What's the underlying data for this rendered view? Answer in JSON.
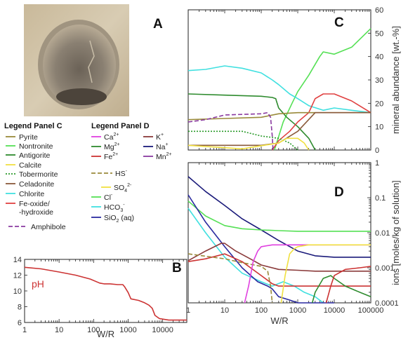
{
  "panels": {
    "A": {
      "letter": "A"
    },
    "B": {
      "letter": "B"
    },
    "C": {
      "letter": "C"
    },
    "D": {
      "letter": "D"
    }
  },
  "legend_c": {
    "title": "Legend Panel C",
    "items": [
      {
        "label": "Pyrite",
        "color": "#9a8a3a",
        "dash": "solid"
      },
      {
        "label": "Nontronite",
        "color": "#55e055",
        "dash": "solid"
      },
      {
        "label": "Antigorite",
        "color": "#2e8b2e",
        "dash": "solid"
      },
      {
        "label": "Calcite",
        "color": "#f0e040",
        "dash": "solid"
      },
      {
        "label": "Tobermorite",
        "color": "#2a9a2a",
        "dash": "dotted"
      },
      {
        "label": "Celadonite",
        "color": "#8a5a3a",
        "dash": "solid"
      },
      {
        "label": "Chlorite",
        "color": "#40e0e0",
        "dash": "solid"
      },
      {
        "label": "Fe-oxide/",
        "label2": "-hydroxide",
        "color": "#e04040",
        "dash": "solid"
      },
      {
        "label": "Amphibole",
        "color": "#8a3aa0",
        "dash": "dashed"
      }
    ]
  },
  "legend_d": {
    "title": "Legend Panel D",
    "col1": [
      {
        "base": "Ca",
        "sup": "2+",
        "sub": "",
        "color": "#e040e0",
        "dash": "solid"
      },
      {
        "base": "Mg",
        "sup": "2+",
        "sub": "",
        "color": "#2e8b2e",
        "dash": "solid"
      },
      {
        "base": "Fe",
        "sup": "2+",
        "sub": "",
        "color": "#cc3333",
        "dash": "solid"
      },
      {
        "base": "HS",
        "sup": "-",
        "sub": "",
        "color": "#9a8a3a",
        "dash": "dashed"
      },
      {
        "base": "SO",
        "sup": "2-",
        "sub": "4",
        "color": "#f0e040",
        "dash": "solid"
      },
      {
        "base": "Cl",
        "sup": "-",
        "sub": "",
        "color": "#55e055",
        "dash": "solid"
      },
      {
        "base": "HCO",
        "sup": "-",
        "sub": "3",
        "color": "#40e0e0",
        "dash": "solid"
      },
      {
        "base": "SiO",
        "sup": "",
        "sub": "2",
        "suffix": "(aq)",
        "color": "#2a2aa0",
        "dash": "solid"
      }
    ],
    "col2": [
      {
        "base": "K",
        "sup": "+",
        "sub": "",
        "color": "#8a3a3a",
        "dash": "solid"
      },
      {
        "base": "Na",
        "sup": "+",
        "sub": "",
        "color": "#1a1a7a",
        "dash": "solid"
      },
      {
        "base": "Mn",
        "sup": "2+",
        "sub": "",
        "color": "#8a3aa0",
        "dash": "solid"
      }
    ]
  },
  "chart_data": [
    {
      "panel": "B",
      "type": "line",
      "xscale": "log",
      "xlim": [
        1,
        50000
      ],
      "ylim": [
        6,
        14
      ],
      "yticks": [
        6,
        8,
        10,
        12,
        14
      ],
      "xticks": [
        1,
        10,
        100,
        1000,
        10000
      ],
      "xtick_labels": [
        "1",
        "10",
        "100",
        "1000",
        "10000"
      ],
      "xlabel": "W/R",
      "ylabel": "",
      "annotation": "pH",
      "series": [
        {
          "color": "#cc3333",
          "x": [
            1,
            3,
            10,
            30,
            80,
            150,
            200,
            300,
            500,
            700,
            800,
            1000,
            1200,
            2000,
            3000,
            4000,
            5000,
            6000,
            8000,
            15000,
            50000
          ],
          "y": [
            13.0,
            12.8,
            12.4,
            12.0,
            11.5,
            11.0,
            10.9,
            10.9,
            10.8,
            10.8,
            10.5,
            9.8,
            9.0,
            8.8,
            8.5,
            8.2,
            7.8,
            6.9,
            6.5,
            6.3,
            6.3
          ]
        }
      ]
    },
    {
      "panel": "C",
      "type": "line",
      "xscale": "log",
      "xlim": [
        1,
        100000
      ],
      "ylim": [
        0,
        60
      ],
      "yticks": [
        0,
        10,
        20,
        30,
        40,
        50,
        60
      ],
      "xticks": [
        1,
        10,
        100,
        1000,
        10000,
        100000
      ],
      "ylabel": "mineral abundance [wt.-%]",
      "series": [
        {
          "name": "Nontronite",
          "color": "#55e055",
          "dash": "solid",
          "x": [
            230,
            400,
            700,
            1000,
            2000,
            4000,
            5000,
            10000,
            30000,
            100000
          ],
          "y": [
            0,
            12,
            20,
            25,
            32,
            40,
            42,
            41,
            44,
            52
          ]
        },
        {
          "name": "Chlorite",
          "color": "#40e0e0",
          "dash": "solid",
          "x": [
            1,
            3,
            10,
            30,
            100,
            200,
            300,
            600,
            1000,
            2000,
            5000,
            10000,
            30000,
            100000
          ],
          "y": [
            34,
            34.5,
            36,
            35,
            33,
            30,
            28,
            24,
            22,
            19,
            17,
            18,
            17,
            16
          ]
        },
        {
          "name": "Antigorite",
          "color": "#2e8b2e",
          "dash": "solid",
          "x": [
            1,
            10,
            100,
            200,
            250,
            260,
            300,
            500,
            1000,
            2000,
            3000
          ],
          "y": [
            24,
            23.5,
            23,
            22.5,
            22,
            21,
            18,
            14,
            10,
            5,
            0
          ]
        },
        {
          "name": "Fe-oxide/-hydroxide",
          "color": "#e04040",
          "dash": "solid",
          "x": [
            200,
            300,
            600,
            1000,
            2000,
            3000,
            5000,
            10000,
            30000,
            100000
          ],
          "y": [
            0,
            4,
            8,
            12,
            16,
            22,
            24,
            24,
            21,
            16
          ]
        },
        {
          "name": "Pyrite",
          "color": "#9a8a3a",
          "dash": "solid",
          "x": [
            1,
            10,
            100,
            300,
            1000,
            5000,
            100000
          ],
          "y": [
            13,
            13.5,
            14,
            15.5,
            16,
            16,
            16
          ]
        },
        {
          "name": "Celadonite",
          "color": "#8a5a3a",
          "dash": "solid",
          "x": [
            1,
            10,
            100,
            300,
            1000,
            3000,
            10000,
            100000
          ],
          "y": [
            2,
            2,
            2,
            3,
            8,
            16,
            16,
            16
          ]
        },
        {
          "name": "Amphibole",
          "color": "#8a3aa0",
          "dash": "dashed",
          "x": [
            1,
            3,
            10,
            100,
            150,
            180,
            200,
            210
          ],
          "y": [
            12,
            13,
            15,
            15.5,
            16,
            14,
            6,
            0
          ]
        },
        {
          "name": "Tobermorite",
          "color": "#2a9a2a",
          "dash": "dotted",
          "x": [
            1,
            10,
            30,
            100,
            300,
            600,
            1000
          ],
          "y": [
            8,
            8,
            8,
            6,
            5,
            3,
            0
          ]
        },
        {
          "name": "Calcite",
          "color": "#f0e040",
          "dash": "solid",
          "x": [
            1,
            3,
            10,
            30,
            300,
            500,
            1000,
            1500,
            2000
          ],
          "y": [
            2,
            1.5,
            1,
            0.5,
            3,
            5,
            5,
            3,
            0
          ]
        }
      ]
    },
    {
      "panel": "D",
      "type": "line",
      "xscale": "log",
      "yscale": "log",
      "xlim": [
        1,
        100000
      ],
      "ylim": [
        0.0001,
        1
      ],
      "yticks": [
        0.0001,
        0.001,
        0.01,
        0.1,
        1
      ],
      "ytick_labels": [
        "0.0001",
        "0.001",
        "0.01",
        "0.1",
        "1"
      ],
      "xticks": [
        1,
        10,
        100,
        1000,
        10000,
        100000
      ],
      "xtick_labels": [
        "1",
        "10",
        "100",
        "1000",
        "10000",
        "100000"
      ],
      "xlabel": "W/R",
      "ylabel": "ions [moles/kg of solution]",
      "series": [
        {
          "name": "Na+",
          "color": "#1a1a7a",
          "dash": "solid",
          "x": [
            1,
            3,
            10,
            30,
            100,
            300,
            1000,
            3000,
            10000,
            100000
          ],
          "y": [
            0.4,
            0.15,
            0.06,
            0.025,
            0.012,
            0.006,
            0.003,
            0.0022,
            0.002,
            0.002
          ]
        },
        {
          "name": "Cl-",
          "color": "#55e055",
          "dash": "solid",
          "x": [
            1,
            3,
            10,
            30,
            100,
            300,
            1000,
            10000,
            100000
          ],
          "y": [
            0.08,
            0.03,
            0.016,
            0.013,
            0.012,
            0.0115,
            0.011,
            0.011,
            0.011
          ]
        },
        {
          "name": "HCO3-",
          "color": "#40e0e0",
          "dash": "solid",
          "x": [
            1,
            3,
            10,
            30,
            100,
            200,
            400,
            800,
            1500,
            3000,
            5000
          ],
          "y": [
            0.05,
            0.01,
            0.002,
            0.0007,
            0.0004,
            0.0003,
            0.0004,
            0.0003,
            0.0002,
            0.00015,
            0.0001
          ]
        },
        {
          "name": "SiO2(aq)",
          "color": "#2a2aa0",
          "dash": "solid",
          "x": [
            1,
            3,
            10,
            30,
            80,
            150,
            200,
            300,
            600,
            1000,
            3000,
            10000
          ],
          "y": [
            0.12,
            0.02,
            0.004,
            0.001,
            0.0004,
            0.0003,
            0.00025,
            0.00015,
            0.00012,
            0.0001,
            0.0001,
            0.0001
          ]
        },
        {
          "name": "Fe2+",
          "color": "#cc3333",
          "dash": "solid",
          "x": [
            1,
            3,
            10,
            30,
            100,
            200,
            300,
            1000,
            3000,
            10000,
            100000
          ],
          "y": [
            0.0015,
            0.0018,
            0.0025,
            0.0015,
            0.0006,
            0.00035,
            0.0003,
            0.0003,
            0.0003,
            0.0003,
            0.0003
          ]
        },
        {
          "name": "K+",
          "color": "#8a3a3a",
          "dash": "solid",
          "x": [
            1,
            3,
            8,
            10,
            20,
            50,
            100,
            300,
            1000,
            3000,
            10000,
            100000
          ],
          "y": [
            0.0016,
            0.003,
            0.005,
            0.005,
            0.003,
            0.0018,
            0.0012,
            0.0009,
            0.00085,
            0.0008,
            0.0008,
            0.0008
          ]
        },
        {
          "name": "HS-",
          "color": "#9a8a3a",
          "dash": "dashed",
          "x": [
            1,
            10,
            30,
            100,
            150,
            180,
            200
          ],
          "y": [
            0.0025,
            0.0018,
            0.0014,
            0.0011,
            0.0008,
            0.0003,
            0.0001
          ]
        },
        {
          "name": "Ca2+",
          "color": "#e040e0",
          "dash": "solid",
          "x": [
            35,
            45,
            60,
            80,
            100,
            200,
            500,
            1000,
            10000,
            100000
          ],
          "y": [
            0.0001,
            0.0003,
            0.0015,
            0.003,
            0.004,
            0.0045,
            0.0045,
            0.0045,
            0.0045,
            0.0045
          ]
        },
        {
          "name": "SO4 2-",
          "color": "#f0e040",
          "dash": "solid",
          "x": [
            350,
            450,
            600,
            800,
            1000,
            2000,
            5000,
            10000,
            100000
          ],
          "y": [
            0.0001,
            0.0006,
            0.0025,
            0.0035,
            0.004,
            0.0045,
            0.0045,
            0.0045,
            0.0045
          ]
        },
        {
          "name": "Mg2+",
          "color": "#2e8b2e",
          "dash": "solid",
          "x": [
            2500,
            3000,
            5000,
            8000,
            10000,
            20000,
            50000,
            100000
          ],
          "y": [
            0.0001,
            0.0002,
            0.0005,
            0.0006,
            0.0005,
            0.0003,
            0.0002,
            0.00015
          ]
        },
        {
          "name": "Fe2+ (late)",
          "color": "#cc3333",
          "dash": "solid",
          "x": [
            6000,
            8000,
            10000,
            20000,
            50000,
            100000
          ],
          "y": [
            0.0001,
            0.0003,
            0.0006,
            0.0009,
            0.001,
            0.0011
          ]
        },
        {
          "name": "Mn2+",
          "color": "#8a3aa0",
          "dash": "solid",
          "x": [],
          "y": []
        }
      ]
    }
  ]
}
